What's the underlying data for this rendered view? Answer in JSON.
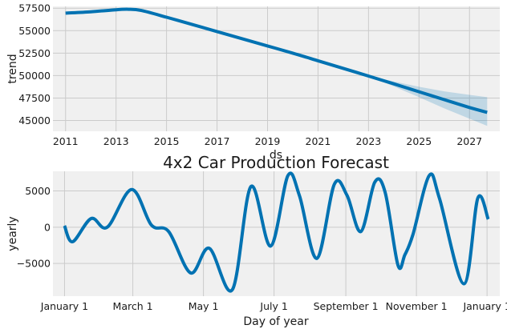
{
  "chart_data": [
    {
      "type": "line",
      "title": "",
      "xlabel": "ds",
      "ylabel": "trend",
      "xlim": [
        2010.5,
        2028.2
      ],
      "ylim": [
        43800,
        57700
      ],
      "xticks": [
        2011,
        2013,
        2015,
        2017,
        2019,
        2021,
        2023,
        2025,
        2027
      ],
      "yticks": [
        45000,
        47500,
        50000,
        52500,
        55000,
        57500
      ],
      "ytick_labels": [
        "45000",
        "47500",
        "50000",
        "52500",
        "55000",
        "57500"
      ],
      "grid": true,
      "series": [
        {
          "color": "#0072b2",
          "x": [
            2011.0,
            2012.0,
            2013.0,
            2013.5,
            2014.0,
            2015.0,
            2016.0,
            2017.0,
            2018.0,
            2019.0,
            2020.0,
            2021.0,
            2022.0,
            2023.0,
            2024.0,
            2025.0,
            2026.0,
            2027.0,
            2027.7
          ],
          "y": [
            56950,
            57100,
            57330,
            57380,
            57250,
            56500,
            55700,
            54900,
            54100,
            53300,
            52500,
            51650,
            50800,
            49950,
            49080,
            48200,
            47320,
            46450,
            45900
          ]
        }
      ],
      "uncertainty_band": {
        "color": "#0072b2",
        "x": [
          2023.0,
          2024.0,
          2025.0,
          2026.0,
          2027.0,
          2027.7
        ],
        "lower": [
          49950,
          48800,
          47600,
          46350,
          45200,
          44400
        ],
        "upper": [
          49950,
          49350,
          48750,
          48250,
          47850,
          47600
        ]
      }
    },
    {
      "type": "line",
      "title": "4x2 Car Production Forecast",
      "xlabel": "Day of year",
      "ylabel": "yearly",
      "xlim": [
        -10,
        376
      ],
      "ylim": [
        -9500,
        7700
      ],
      "xticks": [
        0,
        59,
        120,
        181,
        243,
        304,
        365
      ],
      "xtick_labels": [
        "January 1",
        "March 1",
        "May 1",
        "July 1",
        "September 1",
        "November 1",
        "January 1"
      ],
      "yticks": [
        -5000,
        0,
        5000
      ],
      "ytick_labels": [
        "−5000",
        "0",
        "5000"
      ],
      "grid": true,
      "series": [
        {
          "color": "#0072b2",
          "x": [
            0,
            7,
            23,
            37,
            58,
            75,
            90,
            109,
            125,
            145,
            161,
            178,
            193,
            203,
            218,
            233,
            244,
            256,
            268,
            277,
            288,
            294,
            301,
            315,
            324,
            345,
            357,
            366
          ],
          "y": [
            200,
            -2000,
            1200,
            0,
            5200,
            300,
            -600,
            -6300,
            -2900,
            -8600,
            5600,
            -2600,
            7100,
            4300,
            -4300,
            5900,
            4400,
            -600,
            6200,
            4800,
            -5200,
            -3800,
            -1000,
            7100,
            3900,
            -7800,
            4000,
            1100
          ]
        }
      ]
    }
  ]
}
